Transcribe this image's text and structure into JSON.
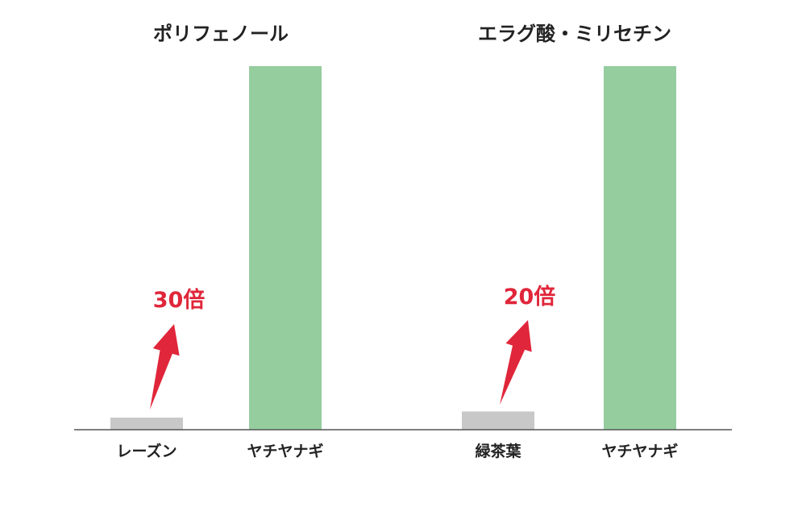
{
  "chart_data": [
    {
      "type": "bar",
      "title": "ポリフェノール",
      "categories": [
        "レーズン",
        "ヤチヤナギ"
      ],
      "values": [
        1,
        30
      ],
      "ylim": [
        0,
        30
      ],
      "annotation": "30倍",
      "colors": [
        "#c8c8c8",
        "#96cd9f"
      ]
    },
    {
      "type": "bar",
      "title": "エラグ酸・ミリセチン",
      "categories": [
        "緑茶葉",
        "ヤチヤナギ"
      ],
      "values": [
        1,
        20
      ],
      "ylim": [
        0,
        20
      ],
      "annotation": "20倍",
      "colors": [
        "#c8c8c8",
        "#96cd9f"
      ]
    }
  ],
  "style": {
    "accent_color": "#e0263a",
    "axis_color": "#555555"
  }
}
